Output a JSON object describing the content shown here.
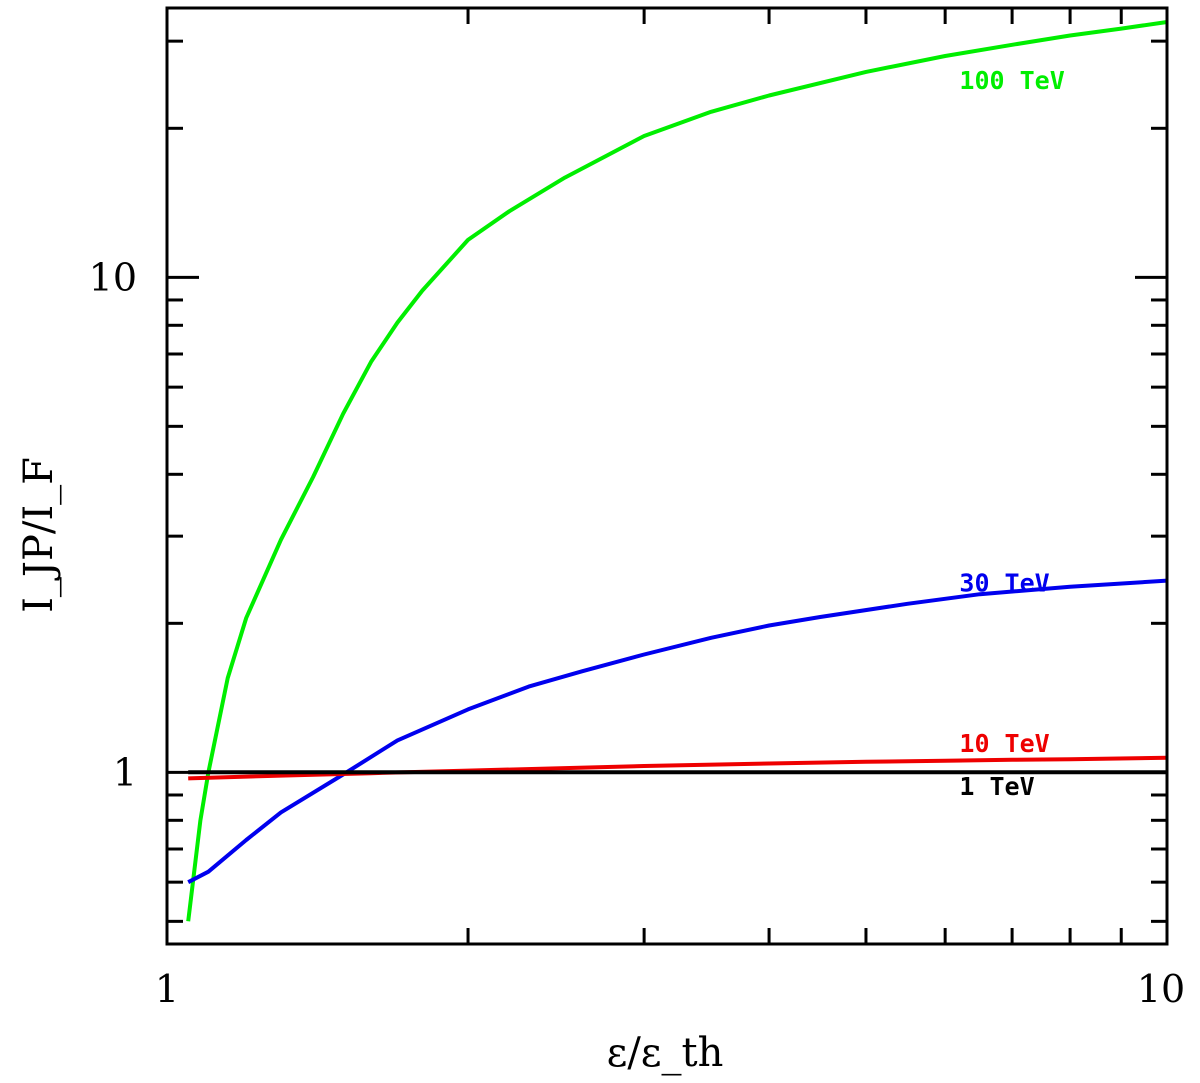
{
  "chart_data": {
    "type": "line",
    "title": "",
    "xlabel": "ε/ε_th",
    "ylabel": "I_JP/I_F",
    "x_scale": "log",
    "y_scale": "log",
    "xlim": [
      1,
      10
    ],
    "ylim": [
      0.45,
      35
    ],
    "x_tick_labels": [
      "1",
      "10"
    ],
    "y_tick_labels": [
      "1",
      "10"
    ],
    "grid": false,
    "series": [
      {
        "name": "100 TeV",
        "label": "100 TeV",
        "color": "#00ee00",
        "x": [
          1.05,
          1.08,
          1.1,
          1.15,
          1.2,
          1.3,
          1.4,
          1.5,
          1.6,
          1.7,
          1.8,
          2.0,
          2.2,
          2.5,
          3.0,
          3.5,
          4.0,
          5.0,
          6.0,
          7.0,
          8.0,
          9.0,
          10.0
        ],
        "y": [
          0.5,
          0.8,
          1.0,
          1.55,
          2.05,
          2.95,
          3.95,
          5.3,
          6.75,
          8.1,
          9.4,
          11.9,
          13.6,
          15.9,
          19.3,
          21.6,
          23.3,
          26.0,
          28.0,
          29.5,
          30.8,
          31.8,
          32.8
        ]
      },
      {
        "name": "30 TeV",
        "label": "30 TeV",
        "color": "#0000ee",
        "x": [
          1.05,
          1.1,
          1.2,
          1.3,
          1.5,
          1.7,
          2.0,
          2.3,
          2.6,
          3.0,
          3.5,
          4.0,
          4.5,
          5.5,
          6.5,
          8.0,
          10.0
        ],
        "y": [
          0.6,
          0.63,
          0.73,
          0.83,
          0.99,
          1.16,
          1.34,
          1.49,
          1.6,
          1.73,
          1.87,
          1.98,
          2.06,
          2.19,
          2.29,
          2.37,
          2.44
        ]
      },
      {
        "name": "10 TeV",
        "label": "10 TeV",
        "color": "#ee0000",
        "x": [
          1.05,
          1.3,
          1.6,
          2.0,
          2.5,
          3.0,
          4.0,
          5.0,
          6.0,
          7.0,
          8.0,
          10.0
        ],
        "y": [
          0.972,
          0.985,
          0.996,
          1.008,
          1.02,
          1.03,
          1.042,
          1.05,
          1.055,
          1.06,
          1.063,
          1.07
        ]
      },
      {
        "name": "1 TeV",
        "label": "1 TeV",
        "color": "#000000",
        "x": [
          1.05,
          10.0
        ],
        "y": [
          1.0,
          1.0
        ]
      }
    ],
    "annotations": [
      {
        "text": "100 TeV",
        "series": "100 TeV",
        "color": "#00ee00",
        "x": 6.2,
        "y": 24.0
      },
      {
        "text": "30 TeV",
        "series": "30 TeV",
        "color": "#0000ee",
        "x": 6.2,
        "y": 2.32
      },
      {
        "text": "10 TeV",
        "series": "10 TeV",
        "color": "#ee0000",
        "x": 6.2,
        "y": 1.1
      },
      {
        "text": "1 TeV",
        "series": "1 TeV",
        "color": "#000000",
        "x": 6.2,
        "y": 0.9
      }
    ]
  }
}
